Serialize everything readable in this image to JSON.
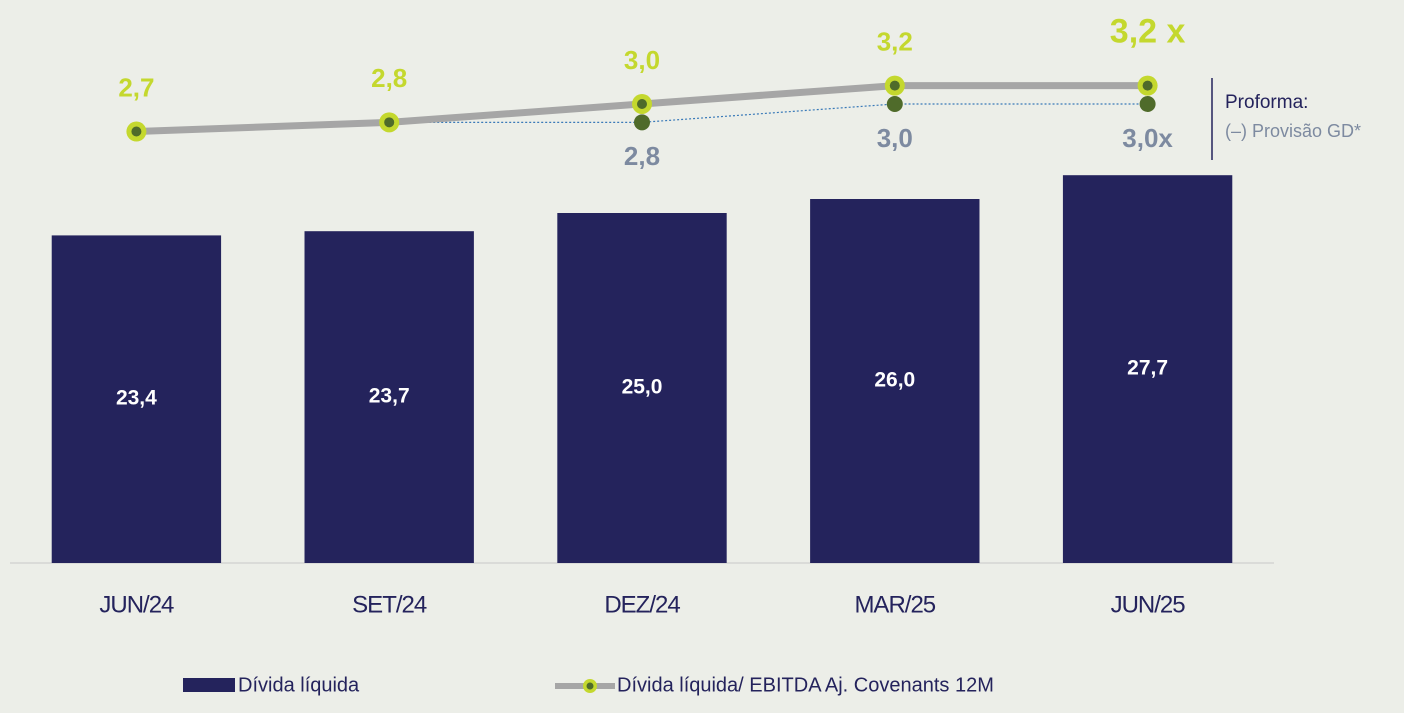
{
  "chart_data": {
    "type": "bar",
    "categories": [
      "JUN/24",
      "SET/24",
      "DEZ/24",
      "MAR/25",
      "JUN/25"
    ],
    "series": [
      {
        "name": "Dívida líquida",
        "type": "bar",
        "color": "#24235c",
        "values": [
          23.4,
          23.7,
          25.0,
          26.0,
          27.7
        ],
        "value_labels": [
          "23,4",
          "23,7",
          "25,0",
          "26,0",
          "27,7"
        ]
      },
      {
        "name": "Dívida líquida/ EBITDA Aj. Covenants 12M",
        "type": "line",
        "axis": "y2",
        "color": "#a6a6a6",
        "marker_color": "#c4d82e",
        "values": [
          2.7,
          2.8,
          3.0,
          3.2,
          3.2
        ],
        "value_labels": [
          "2,7",
          "2,8",
          "3,0",
          "3,2",
          "3,2 x"
        ]
      },
      {
        "type": "line",
        "axis": "y2",
        "style": "dotted",
        "color": "#3a7ab8",
        "marker_color": "#4f6b2a",
        "values": [
          null,
          2.8,
          2.8,
          3.0,
          3.0
        ],
        "value_labels": [
          null,
          null,
          "2,8",
          "3,0",
          "3,0x"
        ]
      }
    ],
    "ylim": [
      0,
      40
    ],
    "y2lim": [
      -2,
      4.1
    ],
    "annotations": [
      "Proforma:",
      "(–) Provisão GD*"
    ],
    "legend": "bottom"
  }
}
